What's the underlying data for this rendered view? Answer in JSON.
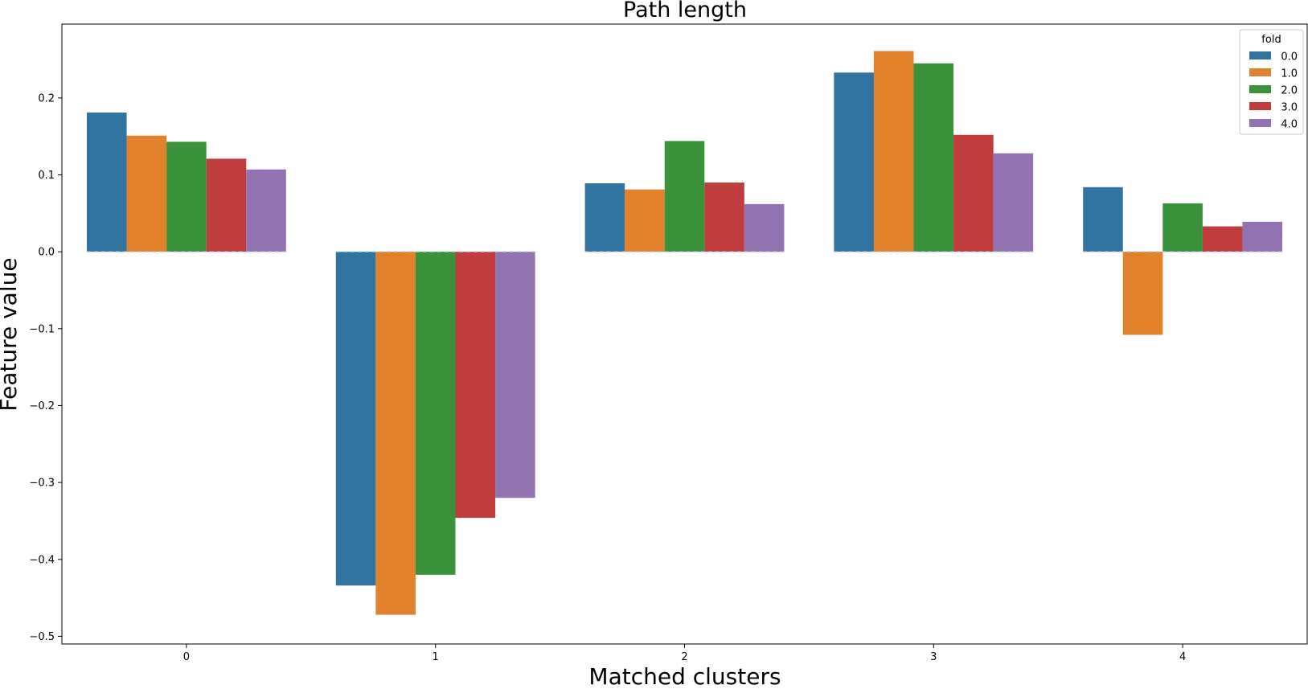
{
  "chart_data": {
    "type": "bar",
    "title": "Path length",
    "xlabel": "Matched clusters",
    "ylabel": "Feature value",
    "categories": [
      "0",
      "1",
      "2",
      "3",
      "4"
    ],
    "ylim": [
      -0.51,
      0.296
    ],
    "yticks": [
      0.2,
      0.1,
      0.0,
      -0.1,
      -0.2,
      -0.3,
      -0.4,
      -0.5
    ],
    "ytick_labels": [
      "0.2",
      "0.1",
      "0.0",
      "−0.1",
      "−0.2",
      "−0.3",
      "−0.4",
      "−0.5"
    ],
    "grid": false,
    "legend": {
      "title": "fold",
      "placement": "top-right"
    },
    "series": [
      {
        "name": "0.0",
        "color": "#3274a1",
        "values": [
          0.181,
          -0.434,
          0.089,
          0.233,
          0.084
        ]
      },
      {
        "name": "1.0",
        "color": "#e1812c",
        "values": [
          0.151,
          -0.472,
          0.081,
          0.261,
          -0.108
        ]
      },
      {
        "name": "2.0",
        "color": "#3a923a",
        "values": [
          0.143,
          -0.42,
          0.144,
          0.245,
          0.063
        ]
      },
      {
        "name": "3.0",
        "color": "#c03d3e",
        "values": [
          0.121,
          -0.346,
          0.09,
          0.152,
          0.033
        ]
      },
      {
        "name": "4.0",
        "color": "#9372b2",
        "values": [
          0.107,
          -0.32,
          0.062,
          0.128,
          0.039
        ]
      }
    ]
  }
}
